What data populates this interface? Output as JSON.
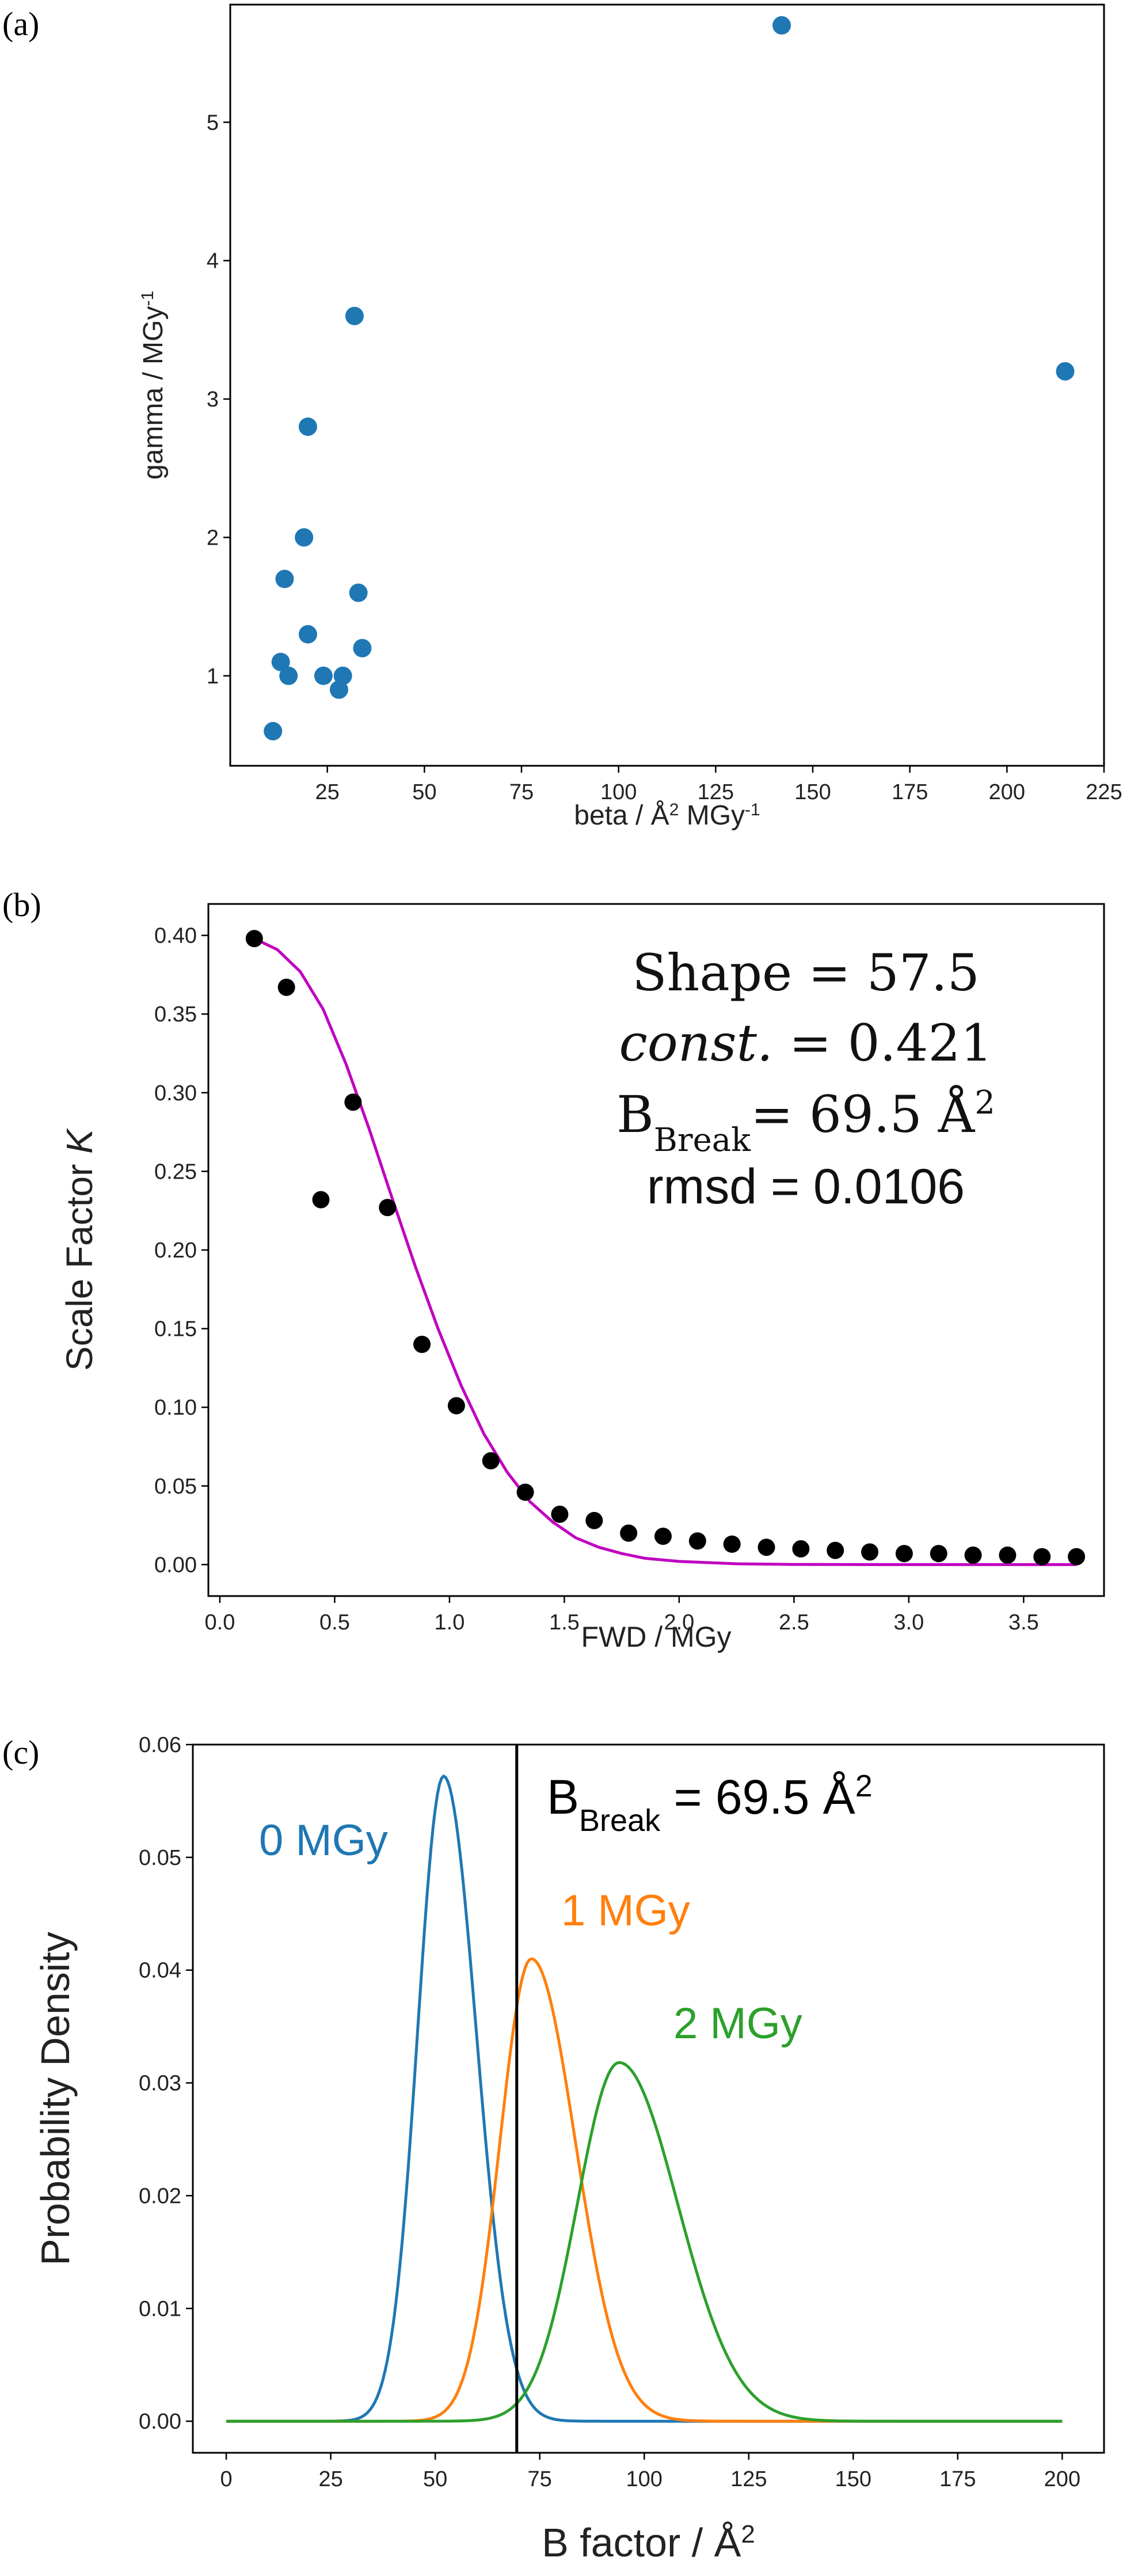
{
  "chart_data": [
    {
      "panel_label": "(a)",
      "type": "scatter",
      "xlabel": "beta / Å² MGy⁻¹",
      "ylabel": "gamma / MGy⁻¹",
      "xlim": [
        0,
        225
      ],
      "ylim": [
        0.35,
        5.85
      ],
      "xticks": [
        "25",
        "50",
        "75",
        "100",
        "125",
        "150",
        "175",
        "200",
        "225"
      ],
      "xtick_values": [
        25,
        50,
        75,
        100,
        125,
        150,
        175,
        200,
        225
      ],
      "yticks": [
        "1",
        "2",
        "3",
        "4",
        "5"
      ],
      "ytick_values": [
        1,
        2,
        3,
        4,
        5
      ],
      "grid": false,
      "series": [
        {
          "color": "#1f77b4",
          "points": [
            [
              142,
              5.7
            ],
            [
              215,
              3.2
            ],
            [
              32,
              3.6
            ],
            [
              20,
              2.8
            ],
            [
              19,
              2.0
            ],
            [
              14,
              1.7
            ],
            [
              33,
              1.6
            ],
            [
              20,
              1.3
            ],
            [
              34,
              1.2
            ],
            [
              13,
              1.1
            ],
            [
              15,
              1.0
            ],
            [
              24,
              1.0
            ],
            [
              29,
              1.0
            ],
            [
              28,
              0.9
            ],
            [
              11,
              0.6
            ]
          ]
        }
      ]
    },
    {
      "panel_label": "(b)",
      "type": "scatter",
      "xlabel": "FWD / MGy",
      "ylabel": "Scale Factor K",
      "xlim": [
        -0.05,
        3.85
      ],
      "ylim": [
        -0.02,
        0.42
      ],
      "xticks": [
        "0.0",
        "0.5",
        "1.0",
        "1.5",
        "2.0",
        "2.5",
        "3.0",
        "3.5"
      ],
      "xtick_values": [
        0,
        0.5,
        1.0,
        1.5,
        2.0,
        2.5,
        3.0,
        3.5
      ],
      "yticks": [
        "0.00",
        "0.05",
        "0.10",
        "0.15",
        "0.20",
        "0.25",
        "0.30",
        "0.35",
        "0.40"
      ],
      "ytick_values": [
        0,
        0.05,
        0.1,
        0.15,
        0.2,
        0.25,
        0.3,
        0.35,
        0.4
      ],
      "grid": false,
      "series": [
        {
          "type": "scatter",
          "color": "#000000",
          "points": [
            [
              0.15,
              0.398
            ],
            [
              0.29,
              0.367
            ],
            [
              0.44,
              0.232
            ],
            [
              0.58,
              0.294
            ],
            [
              0.73,
              0.227
            ],
            [
              0.88,
              0.14
            ],
            [
              1.03,
              0.101
            ],
            [
              1.18,
              0.066
            ],
            [
              1.33,
              0.046
            ],
            [
              1.48,
              0.032
            ],
            [
              1.63,
              0.028
            ],
            [
              1.78,
              0.02
            ],
            [
              1.93,
              0.018
            ],
            [
              2.08,
              0.015
            ],
            [
              2.23,
              0.013
            ],
            [
              2.38,
              0.011
            ],
            [
              2.53,
              0.01
            ],
            [
              2.68,
              0.009
            ],
            [
              2.83,
              0.008
            ],
            [
              2.98,
              0.007
            ],
            [
              3.13,
              0.007
            ],
            [
              3.28,
              0.006
            ],
            [
              3.43,
              0.006
            ],
            [
              3.58,
              0.005
            ],
            [
              3.73,
              0.005
            ]
          ]
        },
        {
          "type": "line",
          "color": "#c000c0",
          "points": [
            [
              0.15,
              0.398
            ],
            [
              0.25,
              0.391
            ],
            [
              0.35,
              0.377
            ],
            [
              0.45,
              0.353
            ],
            [
              0.55,
              0.318
            ],
            [
              0.65,
              0.277
            ],
            [
              0.75,
              0.233
            ],
            [
              0.85,
              0.19
            ],
            [
              0.95,
              0.15
            ],
            [
              1.05,
              0.114
            ],
            [
              1.15,
              0.083
            ],
            [
              1.25,
              0.059
            ],
            [
              1.35,
              0.04
            ],
            [
              1.45,
              0.027
            ],
            [
              1.55,
              0.017
            ],
            [
              1.65,
              0.011
            ],
            [
              1.75,
              0.007
            ],
            [
              1.85,
              0.004
            ],
            [
              2.0,
              0.002
            ],
            [
              2.25,
              0.0005
            ],
            [
              2.5,
              0.0001
            ],
            [
              3.0,
              0.0
            ],
            [
              3.5,
              0.0
            ],
            [
              3.73,
              0.0
            ]
          ]
        }
      ],
      "annotation": {
        "shape_label": "Shape",
        "shape_value": "= 57.5",
        "const_label": "const.",
        "const_value": "= 0.421",
        "bbreak_main": "B",
        "bbreak_sub": "Break",
        "bbreak_value": "= 69.5 Å",
        "bbreak_sup": "2",
        "rmsd": "rmsd = 0.0106"
      }
    },
    {
      "panel_label": "(c)",
      "type": "line",
      "xlabel": "B factor / Å²",
      "ylabel": "Probability Density",
      "xlim": [
        -8,
        210
      ],
      "ylim": [
        -0.0028,
        0.06
      ],
      "xticks": [
        "0",
        "25",
        "50",
        "75",
        "100",
        "125",
        "150",
        "175",
        "200"
      ],
      "xtick_values": [
        0,
        25,
        50,
        75,
        100,
        125,
        150,
        175,
        200
      ],
      "yticks": [
        "0.00",
        "0.01",
        "0.02",
        "0.03",
        "0.04",
        "0.05",
        "0.06"
      ],
      "ytick_values": [
        0,
        0.01,
        0.02,
        0.03,
        0.04,
        0.05,
        0.06
      ],
      "grid": false,
      "vline": {
        "x": 69.5,
        "color": "#000000"
      },
      "annotation": {
        "bbreak_main": "B",
        "bbreak_sub": "Break",
        "bbreak_value": "= 69.5 Å",
        "bbreak_sup": "2"
      },
      "series": [
        {
          "name": "0 MGy",
          "color": "#1f77b4",
          "peak_x": 52,
          "peak_y": 0.0572,
          "sigma_left": 6.2,
          "sigma_right": 7.8
        },
        {
          "name": "1 MGy",
          "color": "#ff7f0e",
          "peak_x": 73,
          "peak_y": 0.041,
          "sigma_left": 7.5,
          "sigma_right": 10.5
        },
        {
          "name": "2 MGy",
          "color": "#2ca02c",
          "peak_x": 94,
          "peak_y": 0.0318,
          "sigma_left": 10.0,
          "sigma_right": 14.0
        }
      ]
    }
  ]
}
